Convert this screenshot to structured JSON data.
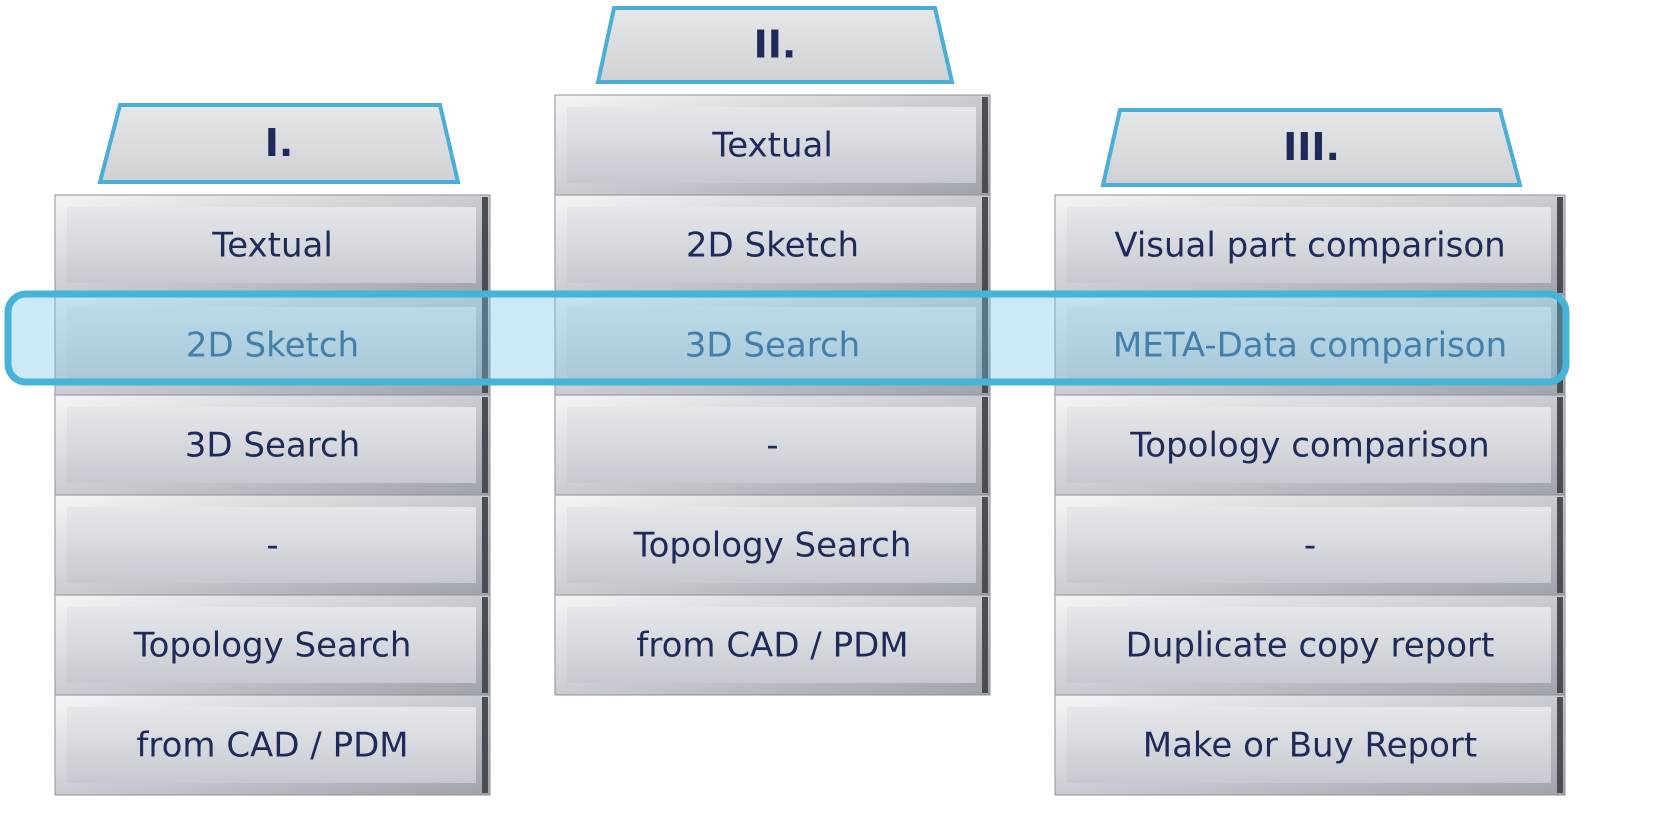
{
  "columns": [
    {
      "header": "I.",
      "rows": [
        "Textual",
        "2D Sketch",
        "3D Search",
        "-",
        "Topology Search",
        "from CAD / PDM"
      ]
    },
    {
      "header": "II.",
      "rows": [
        "Textual",
        "2D Sketch",
        "3D Search",
        "-",
        "Topology Search",
        "from CAD / PDM"
      ]
    },
    {
      "header": "III.",
      "rows": [
        "Visual part comparison",
        "META-Data comparison",
        "Topology comparison",
        "-",
        "Duplicate copy report",
        "Make or Buy Report"
      ]
    }
  ]
}
